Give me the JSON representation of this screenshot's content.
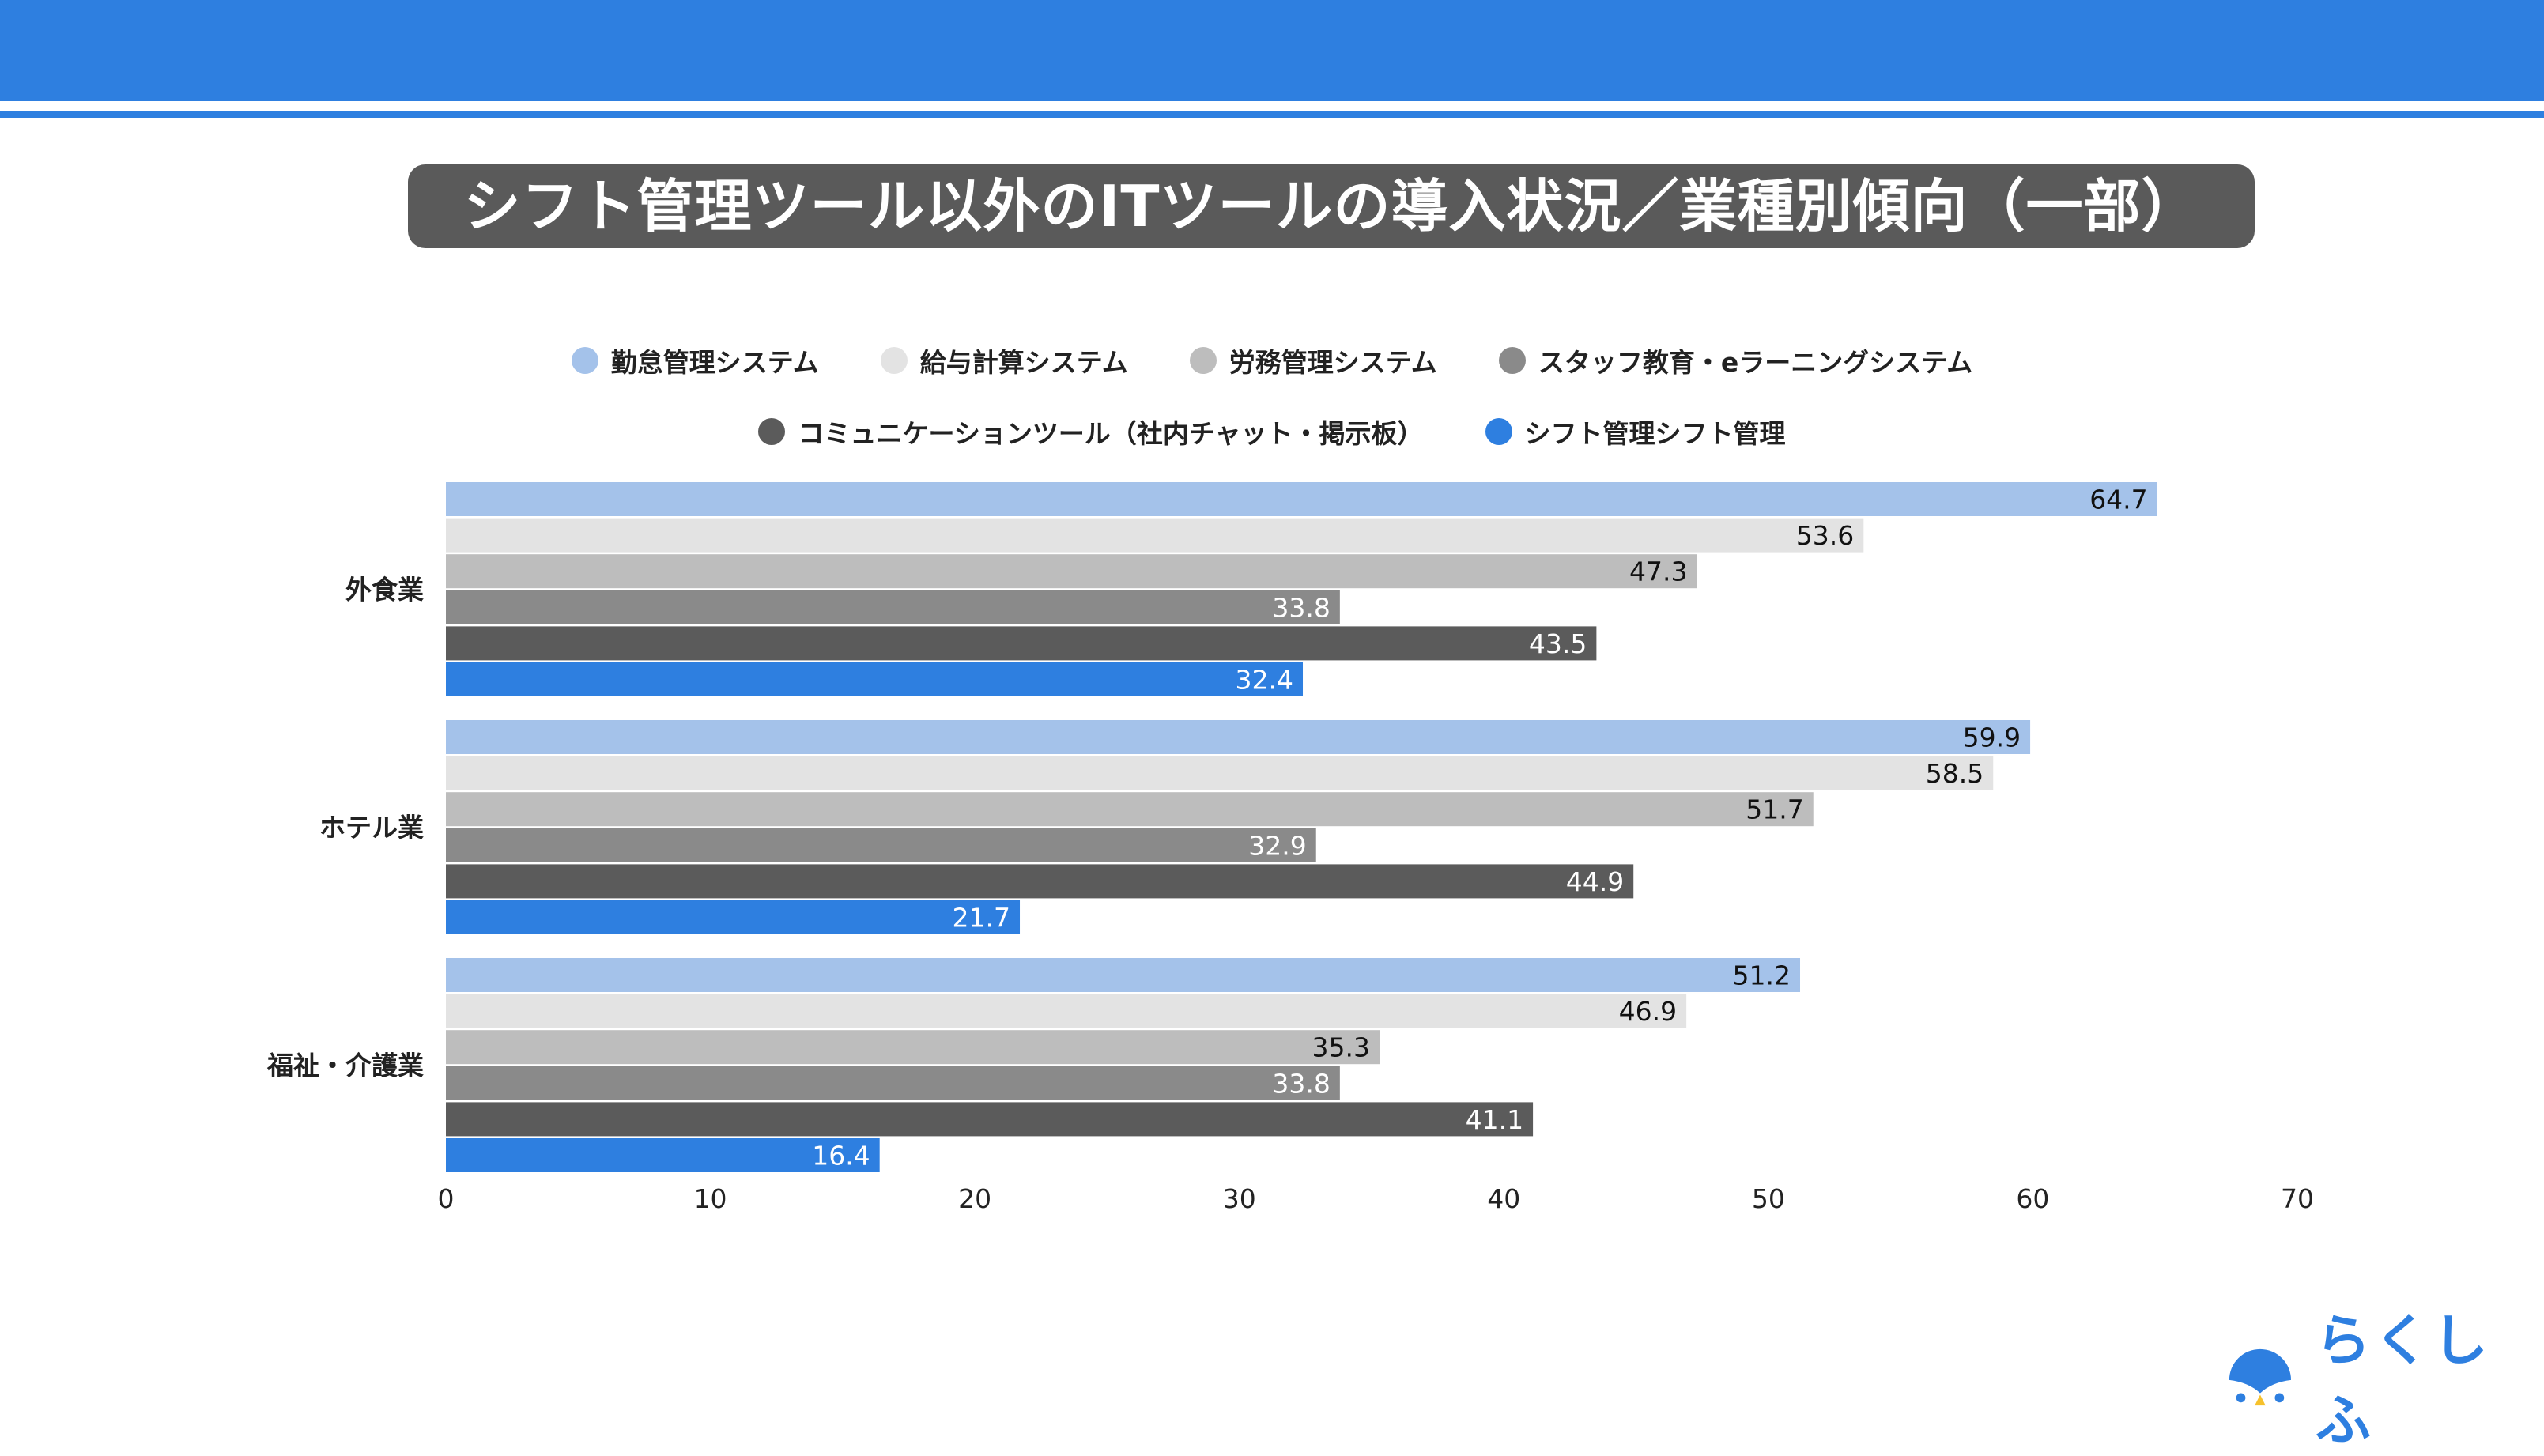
{
  "chart_data": {
    "type": "bar",
    "orientation": "horizontal",
    "title": "シフト管理ツール以外のITツールの導入状況／業種別傾向（一部）",
    "categories": [
      "外食業",
      "ホテル業",
      "福祉・介護業"
    ],
    "series": [
      {
        "name": "勤怠管理システム",
        "color": "#a4c2ea",
        "values": [
          64.7,
          59.9,
          51.2
        ]
      },
      {
        "name": "給与計算システム",
        "color": "#e3e3e3",
        "values": [
          53.6,
          58.5,
          46.9
        ]
      },
      {
        "name": "労務管理システム",
        "color": "#bdbdbd",
        "values": [
          47.3,
          51.7,
          35.3
        ]
      },
      {
        "name": "スタッフ教育・eラーニングシステム",
        "color": "#8a8a8a",
        "values": [
          33.8,
          32.9,
          33.8
        ]
      },
      {
        "name": "コミュニケーションツール（社内チャット・掲示板）",
        "color": "#5b5b5b",
        "values": [
          43.5,
          44.9,
          41.1
        ]
      },
      {
        "name": "シフト管理シフト管理",
        "color": "#2e7fe0",
        "values": [
          32.4,
          21.7,
          16.4
        ]
      }
    ],
    "xlim": [
      0,
      70
    ],
    "xticks": [
      "0",
      "10",
      "20",
      "30",
      "40",
      "50",
      "60",
      "70"
    ],
    "xlabel": "",
    "ylabel": "",
    "grid": false,
    "legend_position": "top"
  },
  "logo": {
    "text": "らくしふ"
  }
}
